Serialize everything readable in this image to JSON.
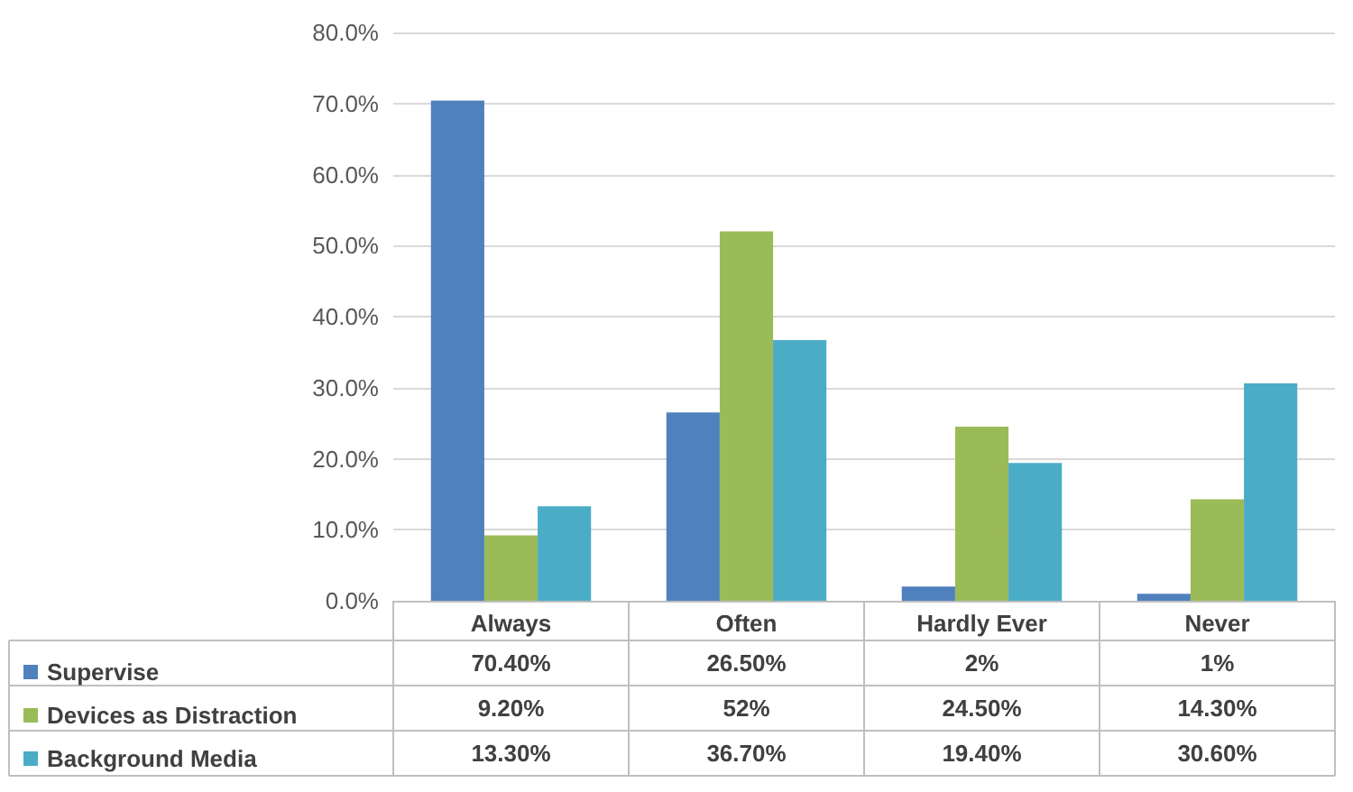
{
  "chart_data": {
    "type": "bar",
    "categories": [
      "Always",
      "Often",
      "Hardly Ever",
      "Never"
    ],
    "series": [
      {
        "name": "Supervise",
        "color": "#4f81bd",
        "values": [
          70.4,
          26.5,
          2,
          1
        ],
        "value_labels": [
          "70.40%",
          "26.50%",
          "2%",
          "1%"
        ]
      },
      {
        "name": "Devices as Distraction",
        "color": "#9bbb59",
        "values": [
          9.2,
          52,
          24.5,
          14.3
        ],
        "value_labels": [
          "9.20%",
          "52%",
          "24.50%",
          "14.30%"
        ]
      },
      {
        "name": "Background Media",
        "color": "#4bacc6",
        "values": [
          13.3,
          36.7,
          19.4,
          30.6
        ],
        "value_labels": [
          "13.30%",
          "36.70%",
          "19.40%",
          "30.60%"
        ]
      }
    ],
    "ylim": [
      0,
      80
    ],
    "yticks": [
      {
        "value": 0,
        "label": "0.0%"
      },
      {
        "value": 10,
        "label": "10.0%"
      },
      {
        "value": 20,
        "label": "20.0%"
      },
      {
        "value": 30,
        "label": "30.0%"
      },
      {
        "value": 40,
        "label": "40.0%"
      },
      {
        "value": 50,
        "label": "50.0%"
      },
      {
        "value": 60,
        "label": "60.0%"
      },
      {
        "value": 70,
        "label": "70.0%"
      },
      {
        "value": 80,
        "label": "80.0%"
      }
    ],
    "grid": "y",
    "legend": "bottom left"
  }
}
